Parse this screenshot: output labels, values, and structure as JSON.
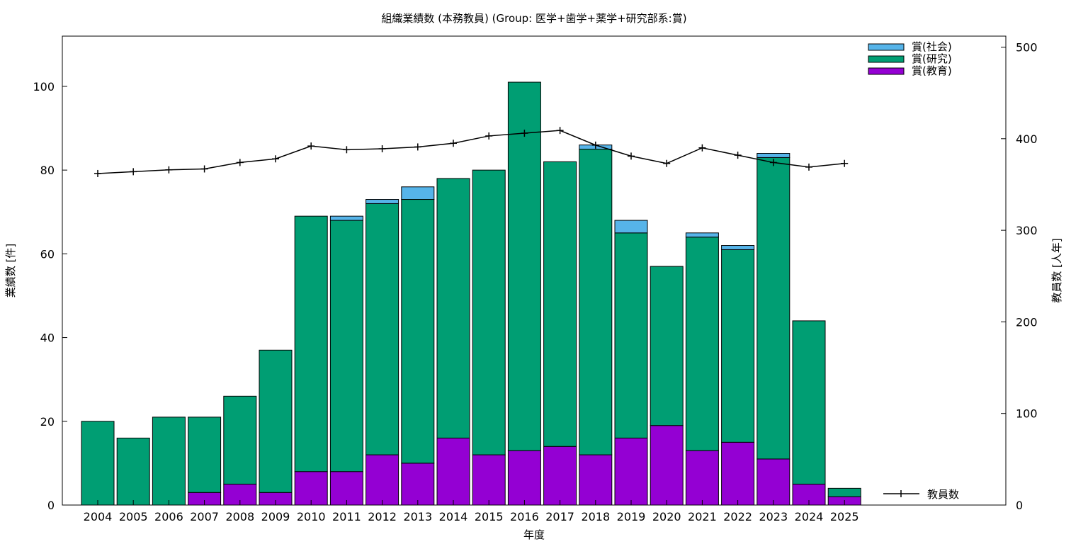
{
  "chart_data": {
    "type": "bar",
    "title": "組織業績数 (本務教員) (Group: 医学+歯学+薬学+研究部系:賞)",
    "xlabel": "年度",
    "ylabel": "業績数 [件]",
    "y2label": "教員数 [人年]",
    "ylim": [
      0,
      112
    ],
    "y2lim": [
      0,
      512
    ],
    "yticks": [
      0,
      20,
      40,
      60,
      80,
      100
    ],
    "y2ticks": [
      0,
      100,
      200,
      300,
      400,
      500
    ],
    "grid": false,
    "legend_position": "top-right",
    "categories": [
      "2004",
      "2005",
      "2006",
      "2007",
      "2008",
      "2009",
      "2010",
      "2011",
      "2012",
      "2013",
      "2014",
      "2015",
      "2016",
      "2017",
      "2018",
      "2019",
      "2020",
      "2021",
      "2022",
      "2023",
      "2024",
      "2025"
    ],
    "stacked": true,
    "series": [
      {
        "name": "賞(教育)",
        "color": "#9400d3",
        "values": [
          0,
          0,
          0,
          3,
          5,
          3,
          8,
          8,
          12,
          10,
          16,
          12,
          13,
          14,
          12,
          16,
          19,
          13,
          15,
          11,
          5,
          2
        ]
      },
      {
        "name": "賞(研究)",
        "color": "#009e73",
        "values": [
          20,
          16,
          21,
          18,
          21,
          34,
          61,
          60,
          60,
          63,
          62,
          68,
          88,
          68,
          73,
          49,
          38,
          51,
          46,
          72,
          39,
          2
        ]
      },
      {
        "name": "賞(社会)",
        "color": "#56b4e9",
        "values": [
          0,
          0,
          0,
          0,
          0,
          0,
          0,
          1,
          1,
          3,
          0,
          0,
          0,
          0,
          1,
          3,
          0,
          1,
          1,
          1,
          0,
          0
        ]
      }
    ],
    "line_series": {
      "name": "教員数",
      "axis": "right",
      "color": "#000000",
      "values": [
        362,
        364,
        366,
        367,
        374,
        378,
        392,
        388,
        389,
        391,
        395,
        403,
        406,
        409,
        393,
        381,
        373,
        390,
        382,
        374,
        369,
        373
      ]
    }
  }
}
